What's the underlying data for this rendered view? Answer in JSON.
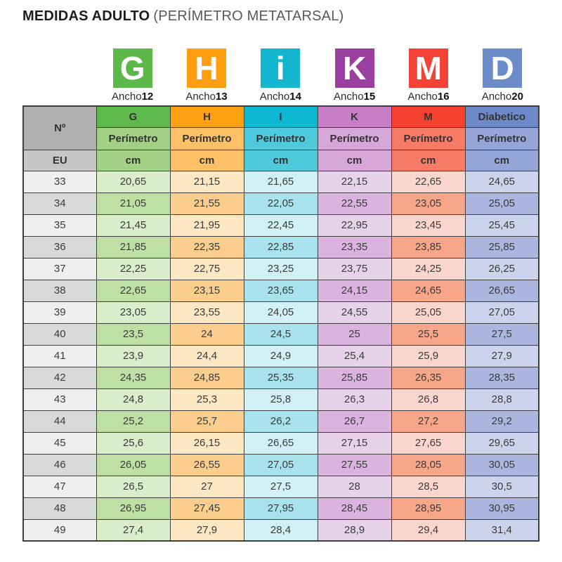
{
  "page": {
    "title_bold": "MEDIDAS ADULTO",
    "title_normal": "(PERÍMETRO METATARSAL)"
  },
  "width_icons": [
    {
      "letter": "G",
      "label_prefix": "Ancho",
      "label_number": "12",
      "color": "#5cb849"
    },
    {
      "letter": "H",
      "label_prefix": "Ancho",
      "label_number": "13",
      "color": "#ff9e11"
    },
    {
      "letter": "i",
      "label_prefix": "Ancho",
      "label_number": "14",
      "color": "#14b5ce"
    },
    {
      "letter": "K",
      "label_prefix": "Ancho",
      "label_number": "15",
      "color": "#9a3fa0"
    },
    {
      "letter": "M",
      "label_prefix": "Ancho",
      "label_number": "16",
      "color": "#f44336"
    },
    {
      "letter": "D",
      "label_prefix": "Ancho",
      "label_number": "20",
      "color": "#6c8cc9"
    }
  ],
  "table": {
    "corner_label": "Nº",
    "eu_label": "EU",
    "subheader_label": "Perímetro",
    "unit_label": "cm",
    "corner_bg": "#b0b0b0",
    "eu_bg": "#c7c7c7",
    "size_col_light": "#efefef",
    "size_col_dark": "#d9d9d9",
    "border_color": "#3e3e3e",
    "columns": [
      {
        "name": "G",
        "header_color": "#60b94b",
        "light_color": "#a2d185",
        "row_light": "#daeecb",
        "row_dark": "#bfe0a4"
      },
      {
        "name": "H",
        "header_color": "#ffa013",
        "light_color": "#fcc166",
        "row_light": "#fee8c4",
        "row_dark": "#fbce8e"
      },
      {
        "name": "I",
        "header_color": "#0cb8d2",
        "light_color": "#4fc9dc",
        "row_light": "#d2f1f6",
        "row_dark": "#a8e3ed"
      },
      {
        "name": "K",
        "header_color": "#c77ec5",
        "light_color": "#d8a7d9",
        "row_light": "#e6d3ea",
        "row_dark": "#dab4df"
      },
      {
        "name": "M",
        "header_color": "#f4402e",
        "light_color": "#f87b66",
        "row_light": "#fbd6ce",
        "row_dark": "#f8a689"
      },
      {
        "name": "Diabetico",
        "header_color": "#6e89c7",
        "light_color": "#96a5d8",
        "row_light": "#cbd4ec",
        "row_dark": "#acb6df"
      }
    ],
    "rows": [
      {
        "size": "33",
        "values": [
          "20,65",
          "21,15",
          "21,65",
          "22,15",
          "22,65",
          "24,65"
        ]
      },
      {
        "size": "34",
        "values": [
          "21,05",
          "21,55",
          "22,05",
          "22,55",
          "23,05",
          "25,05"
        ]
      },
      {
        "size": "35",
        "values": [
          "21,45",
          "21,95",
          "22,45",
          "22,95",
          "23,45",
          "25,45"
        ]
      },
      {
        "size": "36",
        "values": [
          "21,85",
          "22,35",
          "22,85",
          "23,35",
          "23,85",
          "25,85"
        ]
      },
      {
        "size": "37",
        "values": [
          "22,25",
          "22,75",
          "23,25",
          "23,75",
          "24,25",
          "26,25"
        ]
      },
      {
        "size": "38",
        "values": [
          "22,65",
          "23,15",
          "23,65",
          "24,15",
          "24,65",
          "26,65"
        ]
      },
      {
        "size": "39",
        "values": [
          "23,05",
          "23,55",
          "24,05",
          "24,55",
          "25,05",
          "27,05"
        ]
      },
      {
        "size": "40",
        "values": [
          "23,5",
          "24",
          "24,5",
          "25",
          "25,5",
          "27,5"
        ]
      },
      {
        "size": "41",
        "values": [
          "23,9",
          "24,4",
          "24,9",
          "25,4",
          "25,9",
          "27,9"
        ]
      },
      {
        "size": "42",
        "values": [
          "24,35",
          "24,85",
          "25,35",
          "25,85",
          "26,35",
          "28,35"
        ]
      },
      {
        "size": "43",
        "values": [
          "24,8",
          "25,3",
          "25,8",
          "26,3",
          "26,8",
          "28,8"
        ]
      },
      {
        "size": "44",
        "values": [
          "25,2",
          "25,7",
          "26,2",
          "26,7",
          "27,2",
          "29,2"
        ]
      },
      {
        "size": "45",
        "values": [
          "25,6",
          "26,15",
          "26,65",
          "27,15",
          "27,65",
          "29,65"
        ]
      },
      {
        "size": "46",
        "values": [
          "26,05",
          "26,55",
          "27,05",
          "27,55",
          "28,05",
          "30,05"
        ]
      },
      {
        "size": "47",
        "values": [
          "26,5",
          "27",
          "27,5",
          "28",
          "28,5",
          "30,5"
        ]
      },
      {
        "size": "48",
        "values": [
          "26,95",
          "27,45",
          "27,95",
          "28,45",
          "28,95",
          "30,95"
        ]
      },
      {
        "size": "49",
        "values": [
          "27,4",
          "27,9",
          "28,4",
          "28,9",
          "29,4",
          "31,4"
        ]
      }
    ]
  },
  "chart_data": {
    "type": "table",
    "title": "MEDIDAS ADULTO (PERÍMETRO METATARSAL)",
    "columns": [
      "Nº EU",
      "G (Ancho 12) Perímetro cm",
      "H (Ancho 13) Perímetro cm",
      "I (Ancho 14) Perímetro cm",
      "K (Ancho 15) Perímetro cm",
      "M (Ancho 16) Perímetro cm",
      "Diabetico (Ancho 20) Perímetro cm"
    ],
    "rows": [
      [
        33,
        20.65,
        21.15,
        21.65,
        22.15,
        22.65,
        24.65
      ],
      [
        34,
        21.05,
        21.55,
        22.05,
        22.55,
        23.05,
        25.05
      ],
      [
        35,
        21.45,
        21.95,
        22.45,
        22.95,
        23.45,
        25.45
      ],
      [
        36,
        21.85,
        22.35,
        22.85,
        23.35,
        23.85,
        25.85
      ],
      [
        37,
        22.25,
        22.75,
        23.25,
        23.75,
        24.25,
        26.25
      ],
      [
        38,
        22.65,
        23.15,
        23.65,
        24.15,
        24.65,
        26.65
      ],
      [
        39,
        23.05,
        23.55,
        24.05,
        24.55,
        25.05,
        27.05
      ],
      [
        40,
        23.5,
        24,
        24.5,
        25,
        25.5,
        27.5
      ],
      [
        41,
        23.9,
        24.4,
        24.9,
        25.4,
        25.9,
        27.9
      ],
      [
        42,
        24.35,
        24.85,
        25.35,
        25.85,
        26.35,
        28.35
      ],
      [
        43,
        24.8,
        25.3,
        25.8,
        26.3,
        26.8,
        28.8
      ],
      [
        44,
        25.2,
        25.7,
        26.2,
        26.7,
        27.2,
        29.2
      ],
      [
        45,
        25.6,
        26.15,
        26.65,
        27.15,
        27.65,
        29.65
      ],
      [
        46,
        26.05,
        26.55,
        27.05,
        27.55,
        28.05,
        30.05
      ],
      [
        47,
        26.5,
        27,
        27.5,
        28,
        28.5,
        30.5
      ],
      [
        48,
        26.95,
        27.45,
        27.95,
        28.45,
        28.95,
        30.95
      ],
      [
        49,
        27.4,
        27.9,
        28.4,
        28.9,
        29.4,
        31.4
      ]
    ]
  }
}
